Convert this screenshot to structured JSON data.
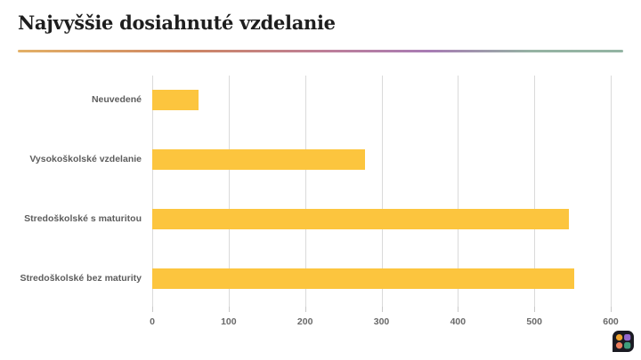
{
  "header": {
    "title": "Najvyššie dosiahnuté vzdelanie"
  },
  "theme": {
    "divider_gradient": [
      "#E3B066 0%",
      "#CE8663 28%",
      "#BC7E9B 52%",
      "#A87CB4 68%",
      "#95B3A3 85%",
      "#93B4A3 100%"
    ],
    "bar_color": "#FCC53E",
    "gridline_color": "#DADADA",
    "category_label_color": "#5D5D5D",
    "tick_label_color": "#696969",
    "title_color": "#1E1E1E",
    "logo_bg": "#1A1A22",
    "logo_quadrants": {
      "top_left": "#F0A42F",
      "top_right": "#9468CE",
      "bottom_left": "#ED7E5E",
      "bottom_right": "#3F9E7D"
    }
  },
  "chart_data": {
    "type": "bar",
    "orientation": "horizontal",
    "title": "Najvyššie dosiahnuté vzdelanie",
    "categories": [
      "Neuvedené",
      "Vysokoškolské vzdelanie",
      "Stredoškolské s maturitou",
      "Stredoškolské bez maturity"
    ],
    "values": [
      60,
      278,
      545,
      552
    ],
    "xlabel": "",
    "ylabel": "",
    "xlim": [
      0,
      600
    ],
    "x_ticks": [
      0,
      100,
      200,
      300,
      400,
      500,
      600
    ],
    "grid": "vertical-gridlines-on",
    "legend": "none"
  },
  "footer": {
    "logo": "flourish-logo"
  }
}
